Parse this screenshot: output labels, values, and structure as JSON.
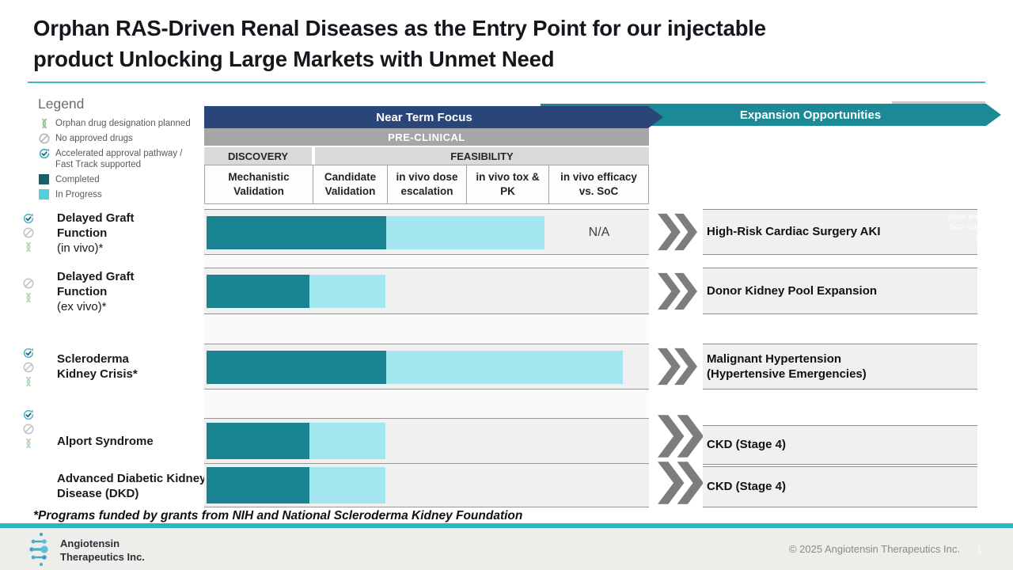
{
  "slide": {
    "title_lines": [
      "Orphan RAS-Driven Renal Diseases as the Entry Point for our injectable",
      "product Unlocking Large Markets with Unmet Need"
    ],
    "footnote": "*Programs funded by grants from NIH and National Scleroderma Kidney Foundation",
    "copyright": "© 2025 Angiotensin Therapeutics Inc.",
    "page_number": "1",
    "logo_line1": "Angiotensin",
    "logo_line2": "Therapeutics Inc."
  },
  "legend": {
    "title": "Legend",
    "items": [
      {
        "icon": "orphan-ribbon-icon",
        "label": "Orphan drug designation planned"
      },
      {
        "icon": "no-approved-drugs-icon",
        "label": "No approved drugs"
      },
      {
        "icon": "accelerated-approval-icon",
        "label": "Accelerated approval pathway / Fast Track supported"
      },
      {
        "icon": "completed-swatch",
        "label": "Completed"
      },
      {
        "icon": "in-progress-swatch",
        "label": "In Progress"
      }
    ]
  },
  "headers": {
    "near_term": "Near Term Focus",
    "expansion": "Expansion Opportunities",
    "phase": "PRE-CLINICAL",
    "stage_groups": [
      "DISCOVERY",
      "FEASIBILITY"
    ],
    "columns": [
      "Mechanistic Validation",
      "Candidate Validation",
      "in vivo dose escalation",
      "in vivo tox & PK",
      "in vivo efficacy vs. SoC"
    ]
  },
  "rows": [
    {
      "label": "Delayed Graft Function",
      "sublabel": "(in vivo)*",
      "icons": [
        "accelerated-approval",
        "no-approved-drugs",
        "orphan-ribbon"
      ],
      "bar": {
        "completed": 227,
        "in_progress": 200
      },
      "completed_through": "Candidate Validation",
      "in_progress_through": "in vivo tox & PK",
      "note": "N/A",
      "expansion": "High-Risk Cardiac Surgery AKI",
      "expansion_annotation": "Short endpoint (7-30 day DGF status) accelerated pathway"
    },
    {
      "label": "Delayed Graft Function",
      "sublabel": "(ex vivo)*",
      "icons": [
        "no-approved-drugs",
        "orphan-ribbon"
      ],
      "bar": {
        "completed": 130,
        "in_progress": 96
      },
      "completed_through": "Mechanistic Validation",
      "in_progress_through": "Candidate Validation",
      "expansion": "Donor Kidney Pool Expansion"
    },
    {
      "label": "Scleroderma Kidney Crisis*",
      "sublabel": "",
      "icons": [
        "accelerated-approval",
        "no-approved-drugs",
        "orphan-ribbon"
      ],
      "bar": {
        "completed": 227,
        "in_progress": 299
      },
      "completed_through": "Candidate Validation",
      "in_progress_through": "in vivo efficacy vs. SoC (partial)",
      "expansion": "Malignant Hypertension (Hypertensive Emergencies)"
    },
    {
      "label": "Alport Syndrome",
      "sublabel": "",
      "icons": [
        "accelerated-approval",
        "no-approved-drugs",
        "orphan-ribbon"
      ],
      "bar": {
        "completed": 130,
        "in_progress": 96
      },
      "completed_through": "Mechanistic Validation",
      "in_progress_through": "Candidate Validation",
      "expansion": "CKD (Stage 4)"
    },
    {
      "label": "Advanced Diabetic Kidney Disease (DKD)",
      "sublabel": "",
      "icons": [],
      "bar": {
        "completed": 130,
        "in_progress": 96
      },
      "completed_through": "Mechanistic Validation",
      "in_progress_through": "Candidate Validation",
      "expansion": "CKD (Stage 4)"
    }
  ],
  "colors": {
    "accent_teal": "#2bb4c1",
    "near_term_arrow": "#2a4679",
    "expansion_arrow": "#1b8a96",
    "legend_completed": "#15606b",
    "legend_in_progress": "#56cede",
    "bar_completed": "#1b8492",
    "bar_in_progress": "#a3e6ef",
    "preclinical_band": "#a6a6a6",
    "stage_band": "#d9d9d9"
  }
}
